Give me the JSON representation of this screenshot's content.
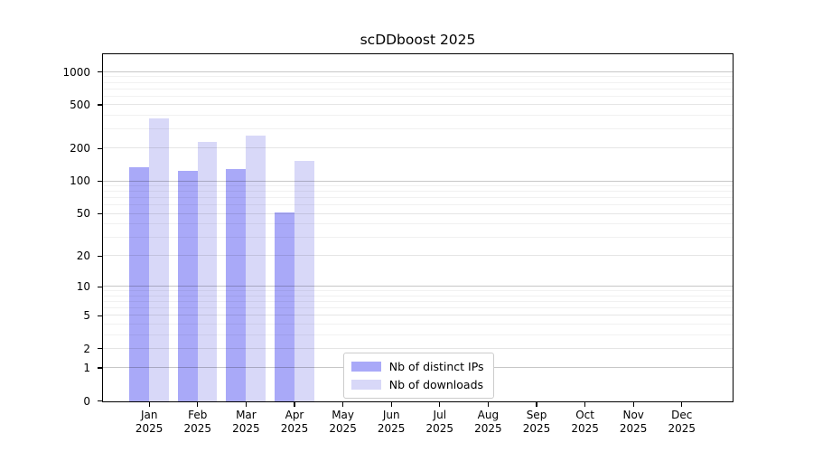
{
  "window": {
    "background": "#ffffff"
  },
  "chart_data": {
    "type": "bar",
    "title": "scDDboost 2025",
    "categories": [
      "Jan",
      "Feb",
      "Mar",
      "Apr",
      "May",
      "Jun",
      "Jul",
      "Aug",
      "Sep",
      "Oct",
      "Nov",
      "Dec"
    ],
    "category_sublabel": "2025",
    "series": [
      {
        "name": "Nb of distinct IPs",
        "color": "#a9a9f8",
        "values": [
          134,
          124,
          129,
          51,
          null,
          null,
          null,
          null,
          null,
          null,
          null,
          null
        ]
      },
      {
        "name": "Nb of downloads",
        "color": "#d8d8f8",
        "values": [
          375,
          228,
          260,
          154,
          null,
          null,
          null,
          null,
          null,
          null,
          null,
          null
        ]
      }
    ],
    "y_ticks": [
      0,
      1,
      2,
      5,
      10,
      20,
      50,
      100,
      200,
      500,
      1000
    ],
    "y_scale": "log10(value+1)",
    "ylim": [
      0,
      1450
    ],
    "xlabel": "",
    "ylabel": "",
    "grid": true,
    "legend_position": "lower-center-inside",
    "bar_group": "two bars per month, distinct IPs left, downloads right"
  }
}
